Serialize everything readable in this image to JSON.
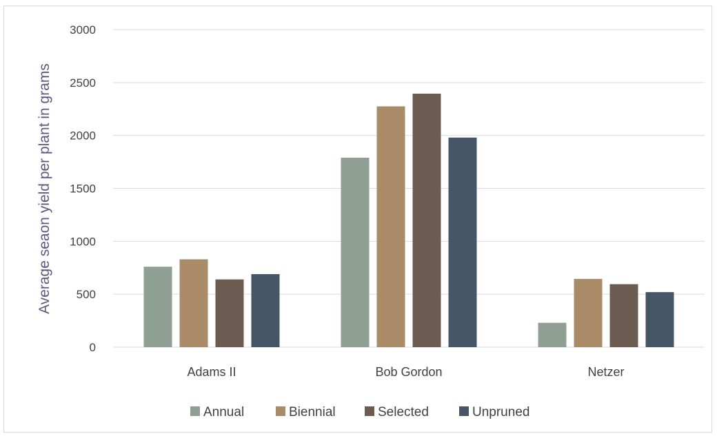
{
  "chart_data": {
    "type": "bar",
    "categories": [
      "Adams II",
      "Bob Gordon",
      "Netzer"
    ],
    "series": [
      {
        "name": "Annual",
        "color": "#8f9f94",
        "values": [
          760,
          1790,
          230
        ]
      },
      {
        "name": "Biennial",
        "color": "#a98b68",
        "values": [
          830,
          2275,
          645
        ]
      },
      {
        "name": "Selected",
        "color": "#6b5b50",
        "values": [
          640,
          2395,
          595
        ]
      },
      {
        "name": "Unpruned",
        "color": "#465666",
        "values": [
          690,
          1980,
          520
        ]
      }
    ],
    "ylabel": "Average seaon yield per plant in grams",
    "xlabel": "",
    "ylim": [
      0,
      3000
    ],
    "yticks": [
      0,
      500,
      1000,
      1500,
      2000,
      2500,
      3000
    ],
    "grid": true,
    "legend_position": "bottom"
  }
}
